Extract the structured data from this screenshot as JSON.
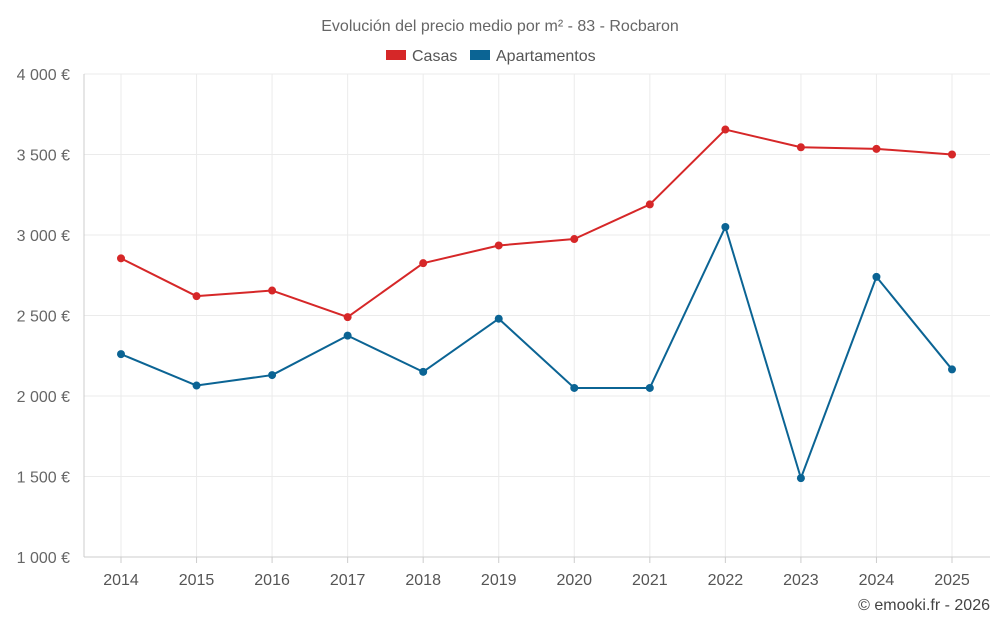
{
  "chart_data": {
    "type": "line",
    "title": "Evolución del precio medio por m² - 83 - Rocbaron",
    "categories": [
      "2014",
      "2015",
      "2016",
      "2017",
      "2018",
      "2019",
      "2020",
      "2021",
      "2022",
      "2023",
      "2024",
      "2025"
    ],
    "series": [
      {
        "name": "Casas",
        "color": "#d62728",
        "values": [
          2855,
          2620,
          2655,
          2490,
          2825,
          2935,
          2975,
          3190,
          3655,
          3545,
          3535,
          3500
        ]
      },
      {
        "name": "Apartamentos",
        "color": "#0b6494",
        "values": [
          2260,
          2065,
          2130,
          2375,
          2150,
          2480,
          2050,
          2050,
          3050,
          1490,
          2740,
          2165
        ]
      }
    ],
    "ylim": [
      1000,
      4000
    ],
    "yticks": [
      1000,
      1500,
      2000,
      2500,
      3000,
      3500,
      4000
    ],
    "ytick_labels": [
      "1 000 €",
      "1 500 €",
      "2 000 €",
      "2 500 €",
      "3 000 €",
      "3 500 €",
      "4 000 €"
    ],
    "xlabel": "",
    "ylabel": "",
    "legend_position": "top",
    "grid": true
  },
  "credit": "© emooki.fr - 2026"
}
